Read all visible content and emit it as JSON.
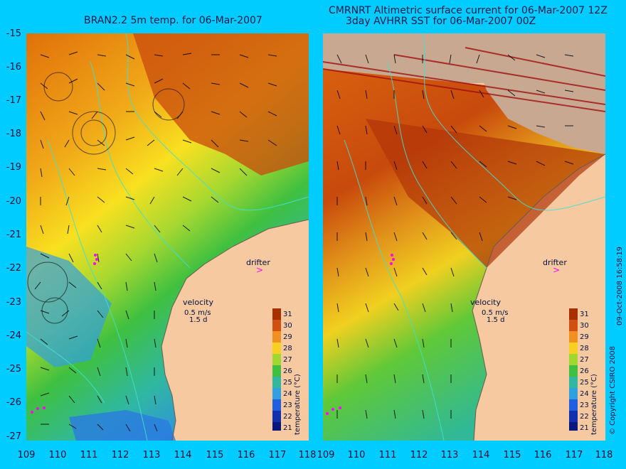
{
  "left_title": "BRAN2.2 5m temp. for 06-Mar-2007",
  "right_title_line1": "CMRNRT Altimetric surface current for 06-Mar-2007 12Z",
  "right_title_line2": "3day AVHRR SST for 06-Mar-2007 00Z",
  "lat_ticks": [
    "-15",
    "-16",
    "-17",
    "-18",
    "-19",
    "-20",
    "-21",
    "-22",
    "-23",
    "-24",
    "-25",
    "-26",
    "-27"
  ],
  "lon_ticks": [
    "109",
    "110",
    "111",
    "112",
    "113",
    "114",
    "115",
    "116",
    "117",
    "118"
  ],
  "drifter_label": "drifter",
  "velocity_label": "velocity",
  "velocity_scale": "0.5 m/s",
  "velocity_period": "1.5 d",
  "colorbar": {
    "title": "temperature (°C)",
    "ticks": [
      "31",
      "30",
      "29",
      "28",
      "27",
      "26",
      "25",
      "24",
      "23",
      "22",
      "21"
    ]
  },
  "copyright": "© Copyright CSIRO 2008",
  "timestamp": "09-Oct-2008 16:58:19",
  "colors": {
    "background": "#00ccff",
    "land": "#f7c9a0",
    "drifter": "#ff00ff",
    "contour": "#40e0d0"
  }
}
